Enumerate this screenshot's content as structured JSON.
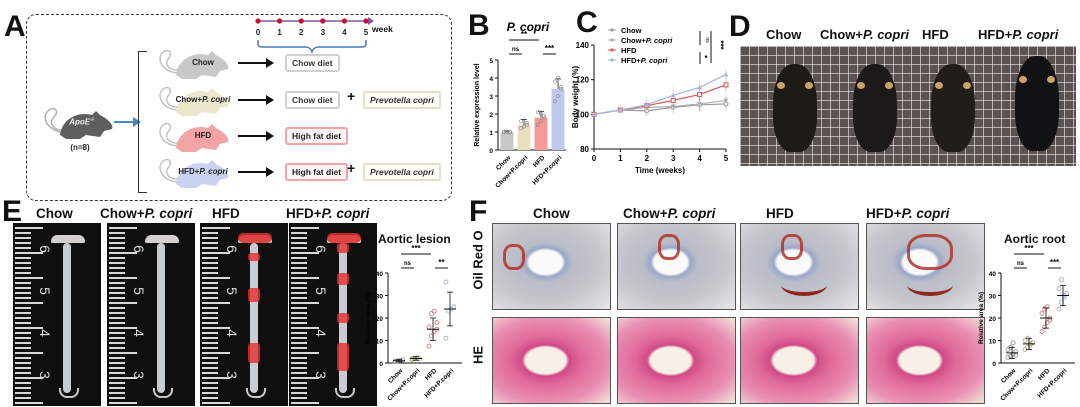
{
  "panels": {
    "A": {
      "letter": "A",
      "timeline": {
        "ticks": [
          "0",
          "1",
          "2",
          "3",
          "4",
          "5"
        ],
        "unit": "week"
      },
      "source_mouse": {
        "label": "ApoE",
        "superscript": "-/-",
        "n_label": "(n=8)"
      },
      "groups": [
        {
          "name": "Chow",
          "mouse_color": "#c8c8c8",
          "diets": [
            {
              "label": "Chow diet",
              "kind": "chow"
            }
          ]
        },
        {
          "name_main": "Chow+",
          "name_italic": "P. copri",
          "mouse_color": "#ece6cc",
          "diets": [
            {
              "label": "Chow diet",
              "kind": "chow"
            },
            {
              "label": "Prevotella copri",
              "kind": "pc"
            }
          ]
        },
        {
          "name": "HFD",
          "mouse_color": "#f3a5a5",
          "diets": [
            {
              "label": "High fat diet",
              "kind": "hfd"
            }
          ]
        },
        {
          "name_main": "HFD+",
          "name_italic": "P. copri",
          "mouse_color": "#c9d2ee",
          "diets": [
            {
              "label": "High fat diet",
              "kind": "hfd"
            },
            {
              "label": "Prevotella copri",
              "kind": "pc"
            }
          ]
        }
      ],
      "plus_symbol": "+"
    },
    "B": {
      "letter": "B"
    },
    "C": {
      "letter": "C"
    },
    "D": {
      "letter": "D",
      "group_titles": [
        {
          "main": "Chow",
          "italic": ""
        },
        {
          "main": "Chow+",
          "italic": "P. copri"
        },
        {
          "main": "HFD",
          "italic": ""
        },
        {
          "main": "HFD+",
          "italic": "P. copri"
        }
      ]
    },
    "E": {
      "letter": "E",
      "group_titles": [
        {
          "main": "Chow",
          "italic": ""
        },
        {
          "main": "Chow+",
          "italic": "P. copri"
        },
        {
          "main": "HFD",
          "italic": ""
        },
        {
          "main": "HFD+",
          "italic": "P. copri"
        }
      ],
      "ruler_labels": [
        "6",
        "5",
        "4",
        "3"
      ]
    },
    "F": {
      "letter": "F",
      "group_titles": [
        {
          "main": "Chow",
          "italic": ""
        },
        {
          "main": "Chow+",
          "italic": "P. copri"
        },
        {
          "main": "HFD",
          "italic": ""
        },
        {
          "main": "HFD+",
          "italic": "P. copri"
        }
      ],
      "row_labels": [
        "Oil Red O",
        "HE"
      ]
    }
  },
  "colors": {
    "chow": "#c8c8c8",
    "chow_pc": "#e8e0bf",
    "hfd": "#f39a9a",
    "hfd_pc": "#bfc9ee",
    "timeline_dot": "#c8102e",
    "timeline_line": "#7b5aa6",
    "brace": "#4a7ab8",
    "arrow_blue": "#4a86c5"
  },
  "chart_data": [
    {
      "id": "B",
      "type": "bar",
      "title": "P. copri",
      "categories": [
        "Chow",
        "Chow+P.copri",
        "HFD",
        "HFD+P.copri"
      ],
      "values": [
        1.0,
        1.4,
        1.8,
        3.4
      ],
      "errors": [
        0.05,
        0.3,
        0.35,
        0.55
      ],
      "points": [
        [
          1.0,
          1.02,
          0.98,
          1.01,
          1.0,
          0.99
        ],
        [
          1.2,
          1.3,
          1.5,
          1.6,
          1.3,
          1.4
        ],
        [
          1.4,
          1.6,
          1.8,
          2.1,
          2.0,
          1.9
        ],
        [
          2.7,
          3.0,
          3.4,
          3.8,
          4.0,
          3.5
        ]
      ],
      "colors": [
        "#c8c8c8",
        "#e8e0bf",
        "#f39a9a",
        "#bfc9ee"
      ],
      "xlabel": "",
      "ylabel": "Relative expression level",
      "ylim": [
        0,
        5
      ],
      "yticks": [
        0,
        1,
        2,
        3,
        4,
        5
      ],
      "significance": [
        {
          "from": 0,
          "to": 2,
          "label": "**"
        },
        {
          "from": 0,
          "to": 1,
          "label": "ns"
        },
        {
          "from": 2,
          "to": 3,
          "label": "***"
        }
      ]
    },
    {
      "id": "C",
      "type": "line",
      "x": [
        0,
        1,
        2,
        3,
        4,
        5
      ],
      "xlabel": "Time (weeks)",
      "ylabel": "Body weight (%)",
      "ylim": [
        80,
        140
      ],
      "yticks": [
        80,
        100,
        120,
        140
      ],
      "xticks": [
        0,
        1,
        2,
        3,
        4,
        5
      ],
      "legend_position": "top-left",
      "series": [
        {
          "name": "Chow",
          "name_italic": "",
          "marker": "circle",
          "color": "#9a9a9a",
          "values": [
            100,
            102.5,
            102,
            104,
            105.5,
            106
          ],
          "errors": [
            0,
            1.5,
            3,
            4,
            4,
            4
          ]
        },
        {
          "name": "Chow+",
          "name_italic": "P. copri",
          "marker": "triangle-down",
          "color": "#b0b0b0",
          "values": [
            100,
            102.5,
            104,
            104.5,
            106,
            108
          ],
          "errors": [
            0,
            1.5,
            3,
            4,
            4,
            4
          ]
        },
        {
          "name": "HFD",
          "name_italic": "",
          "marker": "square",
          "color": "#d9534f",
          "values": [
            100,
            102.5,
            105,
            108,
            111.5,
            117
          ],
          "errors": [
            0,
            1.5,
            3,
            4,
            4,
            4
          ]
        },
        {
          "name": "HFD+",
          "name_italic": "P. copri",
          "marker": "triangle-up",
          "color": "#a7b4e0",
          "values": [
            100,
            102.5,
            105.5,
            111,
            115.5,
            123
          ],
          "errors": [
            0,
            1.5,
            4,
            5,
            4,
            3
          ]
        }
      ],
      "significance": [
        {
          "label": "ns",
          "between": [
            "Chow",
            "Chow+P. copri"
          ]
        },
        {
          "label": "***",
          "between": [
            "Chow",
            "HFD+P. copri"
          ]
        },
        {
          "label": "*",
          "between": [
            "HFD",
            "HFD+P. copri"
          ]
        }
      ]
    },
    {
      "id": "E-chart",
      "type": "scatter",
      "title": "Aortic lesion",
      "categories": [
        "Chow",
        "Chow+P.copri",
        "HFD",
        "HFD+P.copri"
      ],
      "means": [
        1.0,
        2.0,
        15.0,
        24.0
      ],
      "sd": [
        0.5,
        0.8,
        5.0,
        7.5
      ],
      "points": [
        [
          0.6,
          0.9,
          1.2,
          1.3,
          0.8
        ],
        [
          1.5,
          2.1,
          2.4,
          1.8,
          2.0
        ],
        [
          7.5,
          12,
          14,
          15,
          16,
          22,
          23,
          18
        ],
        [
          11,
          23,
          24,
          25,
          36
        ]
      ],
      "colors": [
        "#9a9a9a",
        "#b5b08f",
        "#d98080",
        "#a9b3d8"
      ],
      "ylabel": "Relative area (%)",
      "ylim": [
        0,
        40
      ],
      "yticks": [
        0,
        10,
        20,
        30,
        40
      ],
      "significance": [
        {
          "from": 0,
          "to": 2,
          "label": "***"
        },
        {
          "from": 0,
          "to": 1,
          "label": "ns"
        },
        {
          "from": 2,
          "to": 3,
          "label": "**"
        }
      ]
    },
    {
      "id": "F-chart",
      "type": "scatter",
      "title": "Aortic root",
      "categories": [
        "Chow",
        "Chow+P.copri",
        "HFD",
        "HFD+P.copri"
      ],
      "means": [
        4.5,
        8.5,
        20.0,
        30.0
      ],
      "sd": [
        2.5,
        2.5,
        4.5,
        4.5
      ],
      "points": [
        [
          2.5,
          3,
          4,
          5,
          6,
          7,
          9,
          3.5
        ],
        [
          6,
          7,
          8,
          9,
          10,
          11,
          8.5
        ],
        [
          14,
          16,
          18,
          20,
          22,
          24,
          25,
          19
        ],
        [
          24,
          27,
          29,
          31,
          33,
          37,
          30
        ]
      ],
      "colors": [
        "#9a9a9a",
        "#b5b08f",
        "#d98080",
        "#a9b3d8"
      ],
      "ylabel": "Relative area (%)",
      "ylim": [
        0,
        40
      ],
      "yticks": [
        0,
        10,
        20,
        30,
        40
      ],
      "significance": [
        {
          "from": 0,
          "to": 2,
          "label": "***"
        },
        {
          "from": 0,
          "to": 1,
          "label": "ns"
        },
        {
          "from": 2,
          "to": 3,
          "label": "***"
        }
      ]
    }
  ]
}
